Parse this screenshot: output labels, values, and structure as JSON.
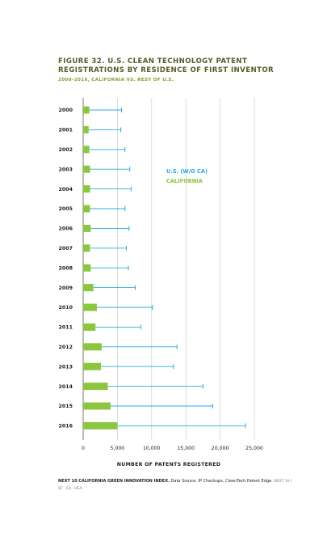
{
  "header": {
    "title": "FIGURE 32. U.S. CLEAN TECHNOLOGY PATENT REGISTRATIONS BY RESIDENCE OF FIRST INVENTOR",
    "subtitle": "2000–2016, CALIFORNIA VS. REST OF U.S."
  },
  "footnote": {
    "source_bold": "NEXT 10 CALIFORNIA GREEN INNOVATION INDEX.",
    "source_text": "Data Source: IP Checkups, CleanTech Patent Edge.",
    "imprint": "NEXT 10 / SF · CA · USA"
  },
  "colors": {
    "california": "#8cc63f",
    "us_without_ca": "#29abe2",
    "grid": "#cccccc",
    "axis_text": "#222222"
  },
  "chart_data": {
    "type": "bar",
    "orientation": "horizontal",
    "categories": [
      "2000",
      "2001",
      "2002",
      "2003",
      "2004",
      "2005",
      "2006",
      "2007",
      "2008",
      "2009",
      "2010",
      "2011",
      "2012",
      "2013",
      "2014",
      "2015",
      "2016"
    ],
    "series": [
      {
        "name": "CALIFORNIA",
        "style": "bar",
        "values": [
          900,
          800,
          900,
          1000,
          1000,
          1000,
          1100,
          1000,
          1100,
          1500,
          2000,
          1800,
          2700,
          2600,
          3600,
          4000,
          5000
        ]
      },
      {
        "name": "U.S. (W/O CA)",
        "style": "line-with-endcap",
        "values": [
          5600,
          5500,
          6100,
          6800,
          7000,
          6100,
          6700,
          6300,
          6600,
          7600,
          10100,
          8400,
          13700,
          13200,
          17500,
          18900,
          23700
        ]
      }
    ],
    "xlabel": "NUMBER OF PATENTS REGISTERED",
    "xlim": [
      0,
      25000
    ],
    "xticks": [
      0,
      5000,
      10000,
      15000,
      20000,
      25000
    ],
    "xtick_labels": [
      "0",
      "5,000",
      "10,000",
      "15,000",
      "20,000",
      "25,000"
    ],
    "grid": "vertical",
    "legend": "upper-middle"
  }
}
